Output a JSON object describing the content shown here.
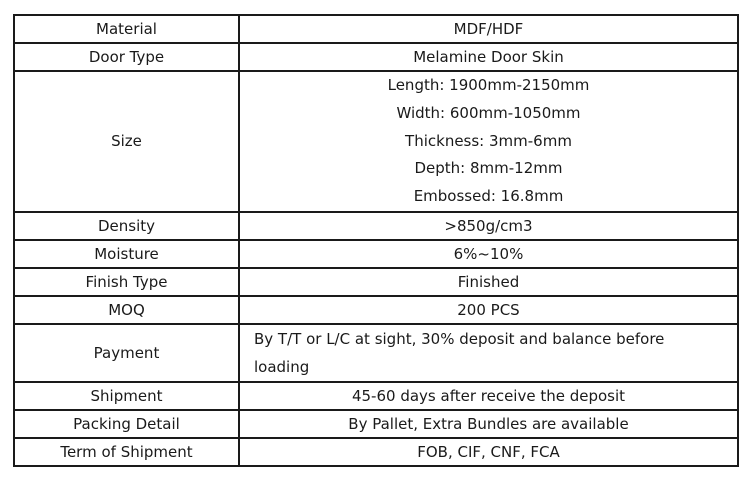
{
  "table": {
    "colors": {
      "border": "#1a1a1a",
      "text": "#1a1a1a",
      "background": "#ffffff"
    },
    "rows": [
      {
        "label": "Material",
        "value": "MDF/HDF"
      },
      {
        "label": "Door Type",
        "value": "Melamine Door Skin"
      },
      {
        "label": "Size",
        "lines": [
          "Length: 1900mm-2150mm",
          "Width: 600mm-1050mm",
          "Thickness: 3mm-6mm",
          "Depth: 8mm-12mm",
          "Embossed: 16.8mm"
        ]
      },
      {
        "label": "Density",
        "value": ">850g/cm3"
      },
      {
        "label": "Moisture",
        "value": "6%~10%"
      },
      {
        "label": "Finish Type",
        "value": "Finished"
      },
      {
        "label": "MOQ",
        "value": "200 PCS"
      },
      {
        "label": "Payment",
        "value": "By T/T or L/C at sight, 30% deposit and balance before loading",
        "align": "left"
      },
      {
        "label": "Shipment",
        "value": "45-60 days after receive the deposit"
      },
      {
        "label": "Packing Detail",
        "value": "By Pallet, Extra Bundles are available"
      },
      {
        "label": "Term of Shipment",
        "value": "FOB, CIF, CNF, FCA"
      }
    ]
  }
}
